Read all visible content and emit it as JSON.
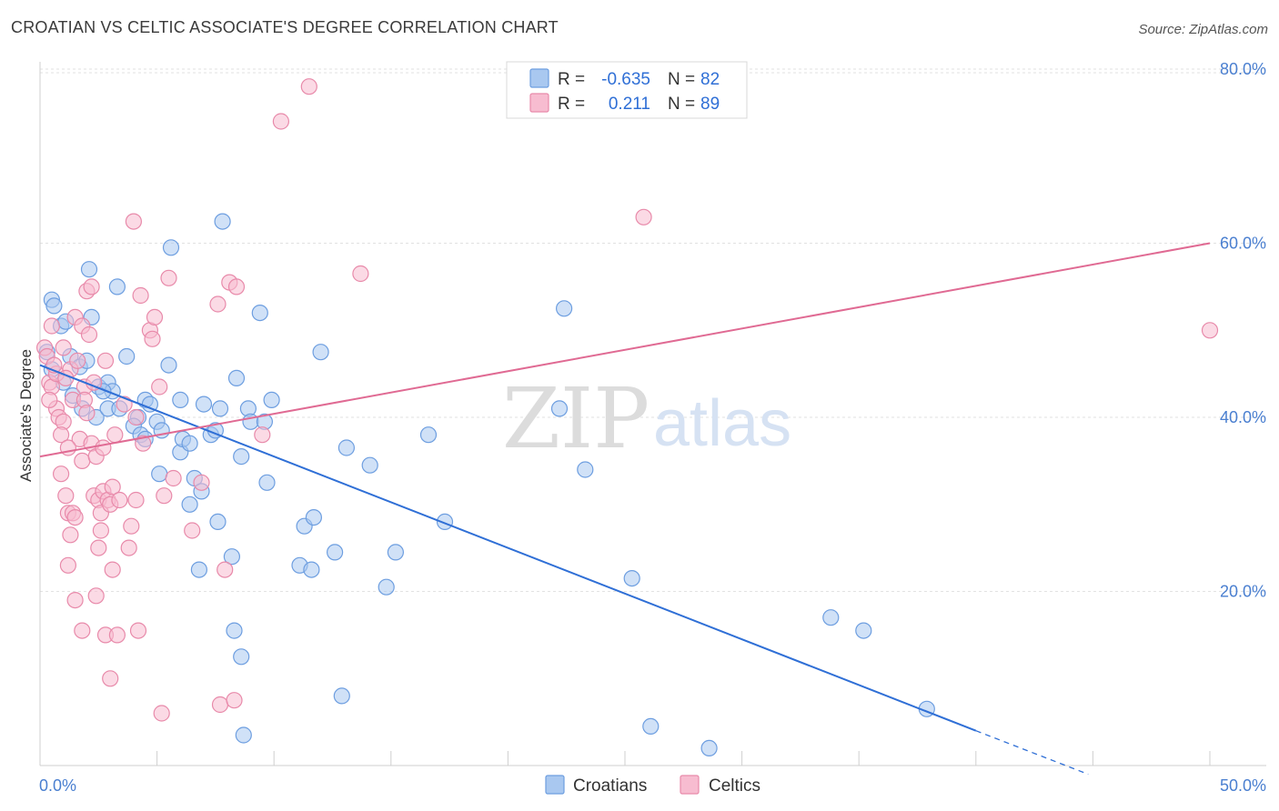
{
  "title": "CROATIAN VS CELTIC ASSOCIATE'S DEGREE CORRELATION CHART",
  "source": "Source: ZipAtlas.com",
  "watermark": {
    "zip": "ZIP",
    "atlas": "atlas"
  },
  "legend": {
    "r_label": "R =",
    "n_label": "N =",
    "entries": [
      {
        "r": "-0.635",
        "n": "82",
        "color": "#a9c8f0",
        "stroke": "#6d9ee0"
      },
      {
        "r": "0.211",
        "n": "89",
        "color": "#f7bcd0",
        "stroke": "#e88aaa"
      }
    ]
  },
  "chart_data": {
    "type": "scatter",
    "title": "CROATIAN VS CELTIC ASSOCIATE'S DEGREE CORRELATION CHART",
    "xlabel": "",
    "ylabel": "Associate's Degree",
    "xlim": [
      0,
      50
    ],
    "ylim": [
      0,
      82
    ],
    "x_tick_labels": [
      "0.0%",
      "50.0%"
    ],
    "y_ticks": [
      20,
      40,
      60,
      80
    ],
    "y_tick_labels": [
      "20.0%",
      "40.0%",
      "60.0%",
      "80.0%"
    ],
    "grid": true,
    "legend_position": "top-center",
    "series": [
      {
        "name": "Croatians",
        "color": "#6d9ee0",
        "fill": "#a9c8f0",
        "trend": {
          "x": [
            0,
            40
          ],
          "y": [
            46.0,
            4.0
          ],
          "dashed_to": [
            44.8,
            -1.0
          ],
          "color": "#2f6fd6"
        },
        "points": [
          [
            0.5,
            53.5
          ],
          [
            0.6,
            52.8
          ],
          [
            0.9,
            50.5
          ],
          [
            1.1,
            51.0
          ],
          [
            2.1,
            57.0
          ],
          [
            2.2,
            51.5
          ],
          [
            3.3,
            55.0
          ],
          [
            0.5,
            45.5
          ],
          [
            1.3,
            47.0
          ],
          [
            1.7,
            45.8
          ],
          [
            2.0,
            46.5
          ],
          [
            1.4,
            42.5
          ],
          [
            2.5,
            43.5
          ],
          [
            2.9,
            44.0
          ],
          [
            3.7,
            47.0
          ],
          [
            2.4,
            40.0
          ],
          [
            2.9,
            41.0
          ],
          [
            3.4,
            41.0
          ],
          [
            4.2,
            40.0
          ],
          [
            4.5,
            42.0
          ],
          [
            4.0,
            39.0
          ],
          [
            4.3,
            38.0
          ],
          [
            4.5,
            37.5
          ],
          [
            5.0,
            39.5
          ],
          [
            5.2,
            38.5
          ],
          [
            5.5,
            46.0
          ],
          [
            5.6,
            59.5
          ],
          [
            6.0,
            42.0
          ],
          [
            6.0,
            36.0
          ],
          [
            6.1,
            37.5
          ],
          [
            6.4,
            37.0
          ],
          [
            7.0,
            41.5
          ],
          [
            7.3,
            38.0
          ],
          [
            7.5,
            38.5
          ],
          [
            7.7,
            41.0
          ],
          [
            7.8,
            62.5
          ],
          [
            8.4,
            44.5
          ],
          [
            8.6,
            35.5
          ],
          [
            8.9,
            41.0
          ],
          [
            9.0,
            39.5
          ],
          [
            9.4,
            52.0
          ],
          [
            9.6,
            39.5
          ],
          [
            9.9,
            42.0
          ],
          [
            5.1,
            33.5
          ],
          [
            6.4,
            30.0
          ],
          [
            6.6,
            33.0
          ],
          [
            6.9,
            31.5
          ],
          [
            7.6,
            28.0
          ],
          [
            8.2,
            24.0
          ],
          [
            9.7,
            32.5
          ],
          [
            6.8,
            22.5
          ],
          [
            8.3,
            15.5
          ],
          [
            8.6,
            12.5
          ],
          [
            8.7,
            3.5
          ],
          [
            11.1,
            23.0
          ],
          [
            11.3,
            27.5
          ],
          [
            11.6,
            22.5
          ],
          [
            11.7,
            28.5
          ],
          [
            12.0,
            47.5
          ],
          [
            12.6,
            24.5
          ],
          [
            12.9,
            8.0
          ],
          [
            13.1,
            36.5
          ],
          [
            14.1,
            34.5
          ],
          [
            14.8,
            20.5
          ],
          [
            15.2,
            24.5
          ],
          [
            16.6,
            38.0
          ],
          [
            17.3,
            28.0
          ],
          [
            22.4,
            52.5
          ],
          [
            22.2,
            41.0
          ],
          [
            23.3,
            34.0
          ],
          [
            25.3,
            21.5
          ],
          [
            26.1,
            4.5
          ],
          [
            28.6,
            2.0
          ],
          [
            33.8,
            17.0
          ],
          [
            35.2,
            15.5
          ],
          [
            37.9,
            6.5
          ],
          [
            0.3,
            47.5
          ],
          [
            1.0,
            44.0
          ],
          [
            3.1,
            43.0
          ],
          [
            4.7,
            41.5
          ],
          [
            2.7,
            43.0
          ],
          [
            1.8,
            41.0
          ]
        ]
      },
      {
        "name": "Celtics",
        "color": "#e88aaa",
        "fill": "#f7bcd0",
        "trend": {
          "x": [
            0,
            50
          ],
          "y": [
            35.5,
            60.0
          ],
          "color": "#e06a93"
        },
        "points": [
          [
            0.2,
            48.0
          ],
          [
            0.3,
            47.0
          ],
          [
            0.4,
            44.0
          ],
          [
            0.5,
            43.5
          ],
          [
            0.7,
            45.0
          ],
          [
            1.0,
            48.0
          ],
          [
            0.7,
            41.0
          ],
          [
            0.8,
            40.0
          ],
          [
            1.0,
            39.5
          ],
          [
            1.3,
            45.5
          ],
          [
            1.4,
            42.0
          ],
          [
            1.5,
            51.5
          ],
          [
            1.8,
            50.5
          ],
          [
            2.0,
            54.5
          ],
          [
            2.1,
            49.5
          ],
          [
            2.2,
            55.0
          ],
          [
            1.9,
            43.5
          ],
          [
            1.9,
            42.0
          ],
          [
            0.5,
            50.5
          ],
          [
            0.9,
            38.0
          ],
          [
            1.7,
            37.5
          ],
          [
            1.8,
            35.0
          ],
          [
            2.2,
            37.0
          ],
          [
            2.4,
            35.5
          ],
          [
            2.7,
            36.5
          ],
          [
            1.2,
            36.5
          ],
          [
            0.9,
            33.5
          ],
          [
            1.1,
            31.0
          ],
          [
            1.2,
            29.0
          ],
          [
            1.4,
            29.0
          ],
          [
            1.5,
            28.5
          ],
          [
            1.3,
            26.5
          ],
          [
            2.3,
            31.0
          ],
          [
            2.5,
            30.5
          ],
          [
            2.7,
            31.5
          ],
          [
            2.9,
            30.5
          ],
          [
            2.6,
            29.0
          ],
          [
            2.6,
            27.0
          ],
          [
            2.5,
            25.0
          ],
          [
            3.0,
            30.0
          ],
          [
            3.1,
            32.0
          ],
          [
            3.4,
            30.5
          ],
          [
            3.9,
            27.5
          ],
          [
            3.8,
            25.0
          ],
          [
            4.1,
            30.5
          ],
          [
            4.1,
            40.0
          ],
          [
            4.3,
            54.0
          ],
          [
            4.7,
            50.0
          ],
          [
            4.8,
            49.0
          ],
          [
            4.9,
            51.5
          ],
          [
            5.1,
            43.5
          ],
          [
            5.3,
            31.0
          ],
          [
            5.5,
            56.0
          ],
          [
            5.7,
            33.0
          ],
          [
            1.2,
            23.0
          ],
          [
            1.5,
            19.0
          ],
          [
            2.4,
            19.5
          ],
          [
            3.1,
            22.5
          ],
          [
            1.8,
            15.5
          ],
          [
            2.8,
            15.0
          ],
          [
            3.3,
            15.0
          ],
          [
            4.2,
            15.5
          ],
          [
            3.0,
            10.0
          ],
          [
            5.2,
            6.0
          ],
          [
            6.5,
            27.0
          ],
          [
            6.9,
            32.5
          ],
          [
            7.6,
            53.0
          ],
          [
            8.1,
            55.5
          ],
          [
            8.4,
            55.0
          ],
          [
            7.9,
            22.5
          ],
          [
            7.7,
            7.0
          ],
          [
            8.3,
            7.5
          ],
          [
            9.5,
            38.0
          ],
          [
            10.3,
            74.0
          ],
          [
            11.5,
            78.0
          ],
          [
            13.7,
            56.5
          ],
          [
            4.0,
            62.5
          ],
          [
            25.8,
            63.0
          ],
          [
            50.0,
            50.0
          ],
          [
            0.6,
            46.0
          ],
          [
            2.0,
            40.5
          ],
          [
            3.2,
            38.0
          ],
          [
            1.6,
            46.5
          ],
          [
            0.4,
            42.0
          ],
          [
            3.6,
            41.5
          ],
          [
            4.4,
            37.0
          ],
          [
            2.8,
            46.5
          ],
          [
            1.1,
            44.5
          ],
          [
            2.3,
            44.0
          ]
        ]
      }
    ]
  },
  "bottom_legend": [
    {
      "label": "Croatians",
      "color": "#a9c8f0",
      "stroke": "#6d9ee0"
    },
    {
      "label": "Celtics",
      "color": "#f7bcd0",
      "stroke": "#e88aaa"
    }
  ]
}
